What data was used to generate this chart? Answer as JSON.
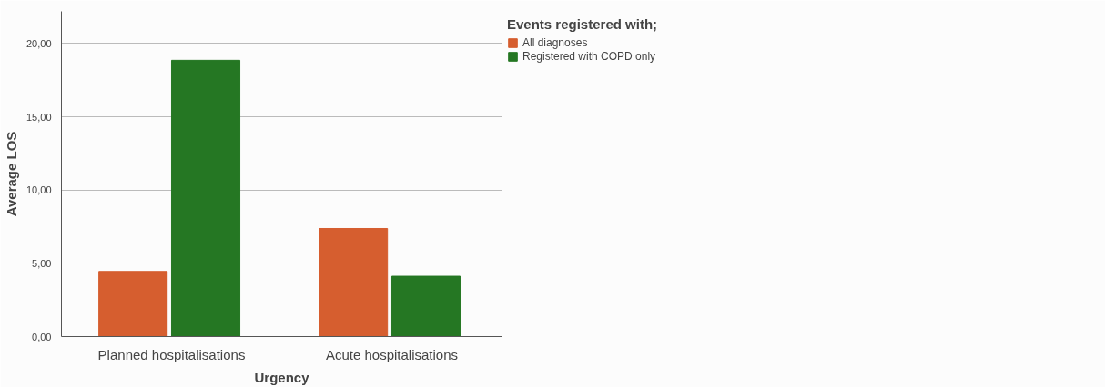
{
  "chart_data": {
    "type": "bar",
    "categories": [
      "Planned hospitalisations",
      "Acute hospitalisations"
    ],
    "xlabel": "Urgency",
    "ylabel": "Average LOS",
    "legend_title": "Events registered with;",
    "series": [
      {
        "name": "All diagnoses",
        "color": "#d65e2f",
        "values": [
          4.45,
          7.38
        ]
      },
      {
        "name": "Registered with COPD only",
        "color": "#257723",
        "values": [
          18.86,
          4.12
        ]
      }
    ],
    "ylim": [
      0,
      22.2
    ],
    "yticks": [
      {
        "value": 0,
        "label": "0,00"
      },
      {
        "value": 5,
        "label": "5,00"
      },
      {
        "value": 10,
        "label": "10,00"
      },
      {
        "value": 15,
        "label": "15,00"
      },
      {
        "value": 20,
        "label": "20,00"
      }
    ],
    "grid": "y",
    "legend": "top right"
  }
}
